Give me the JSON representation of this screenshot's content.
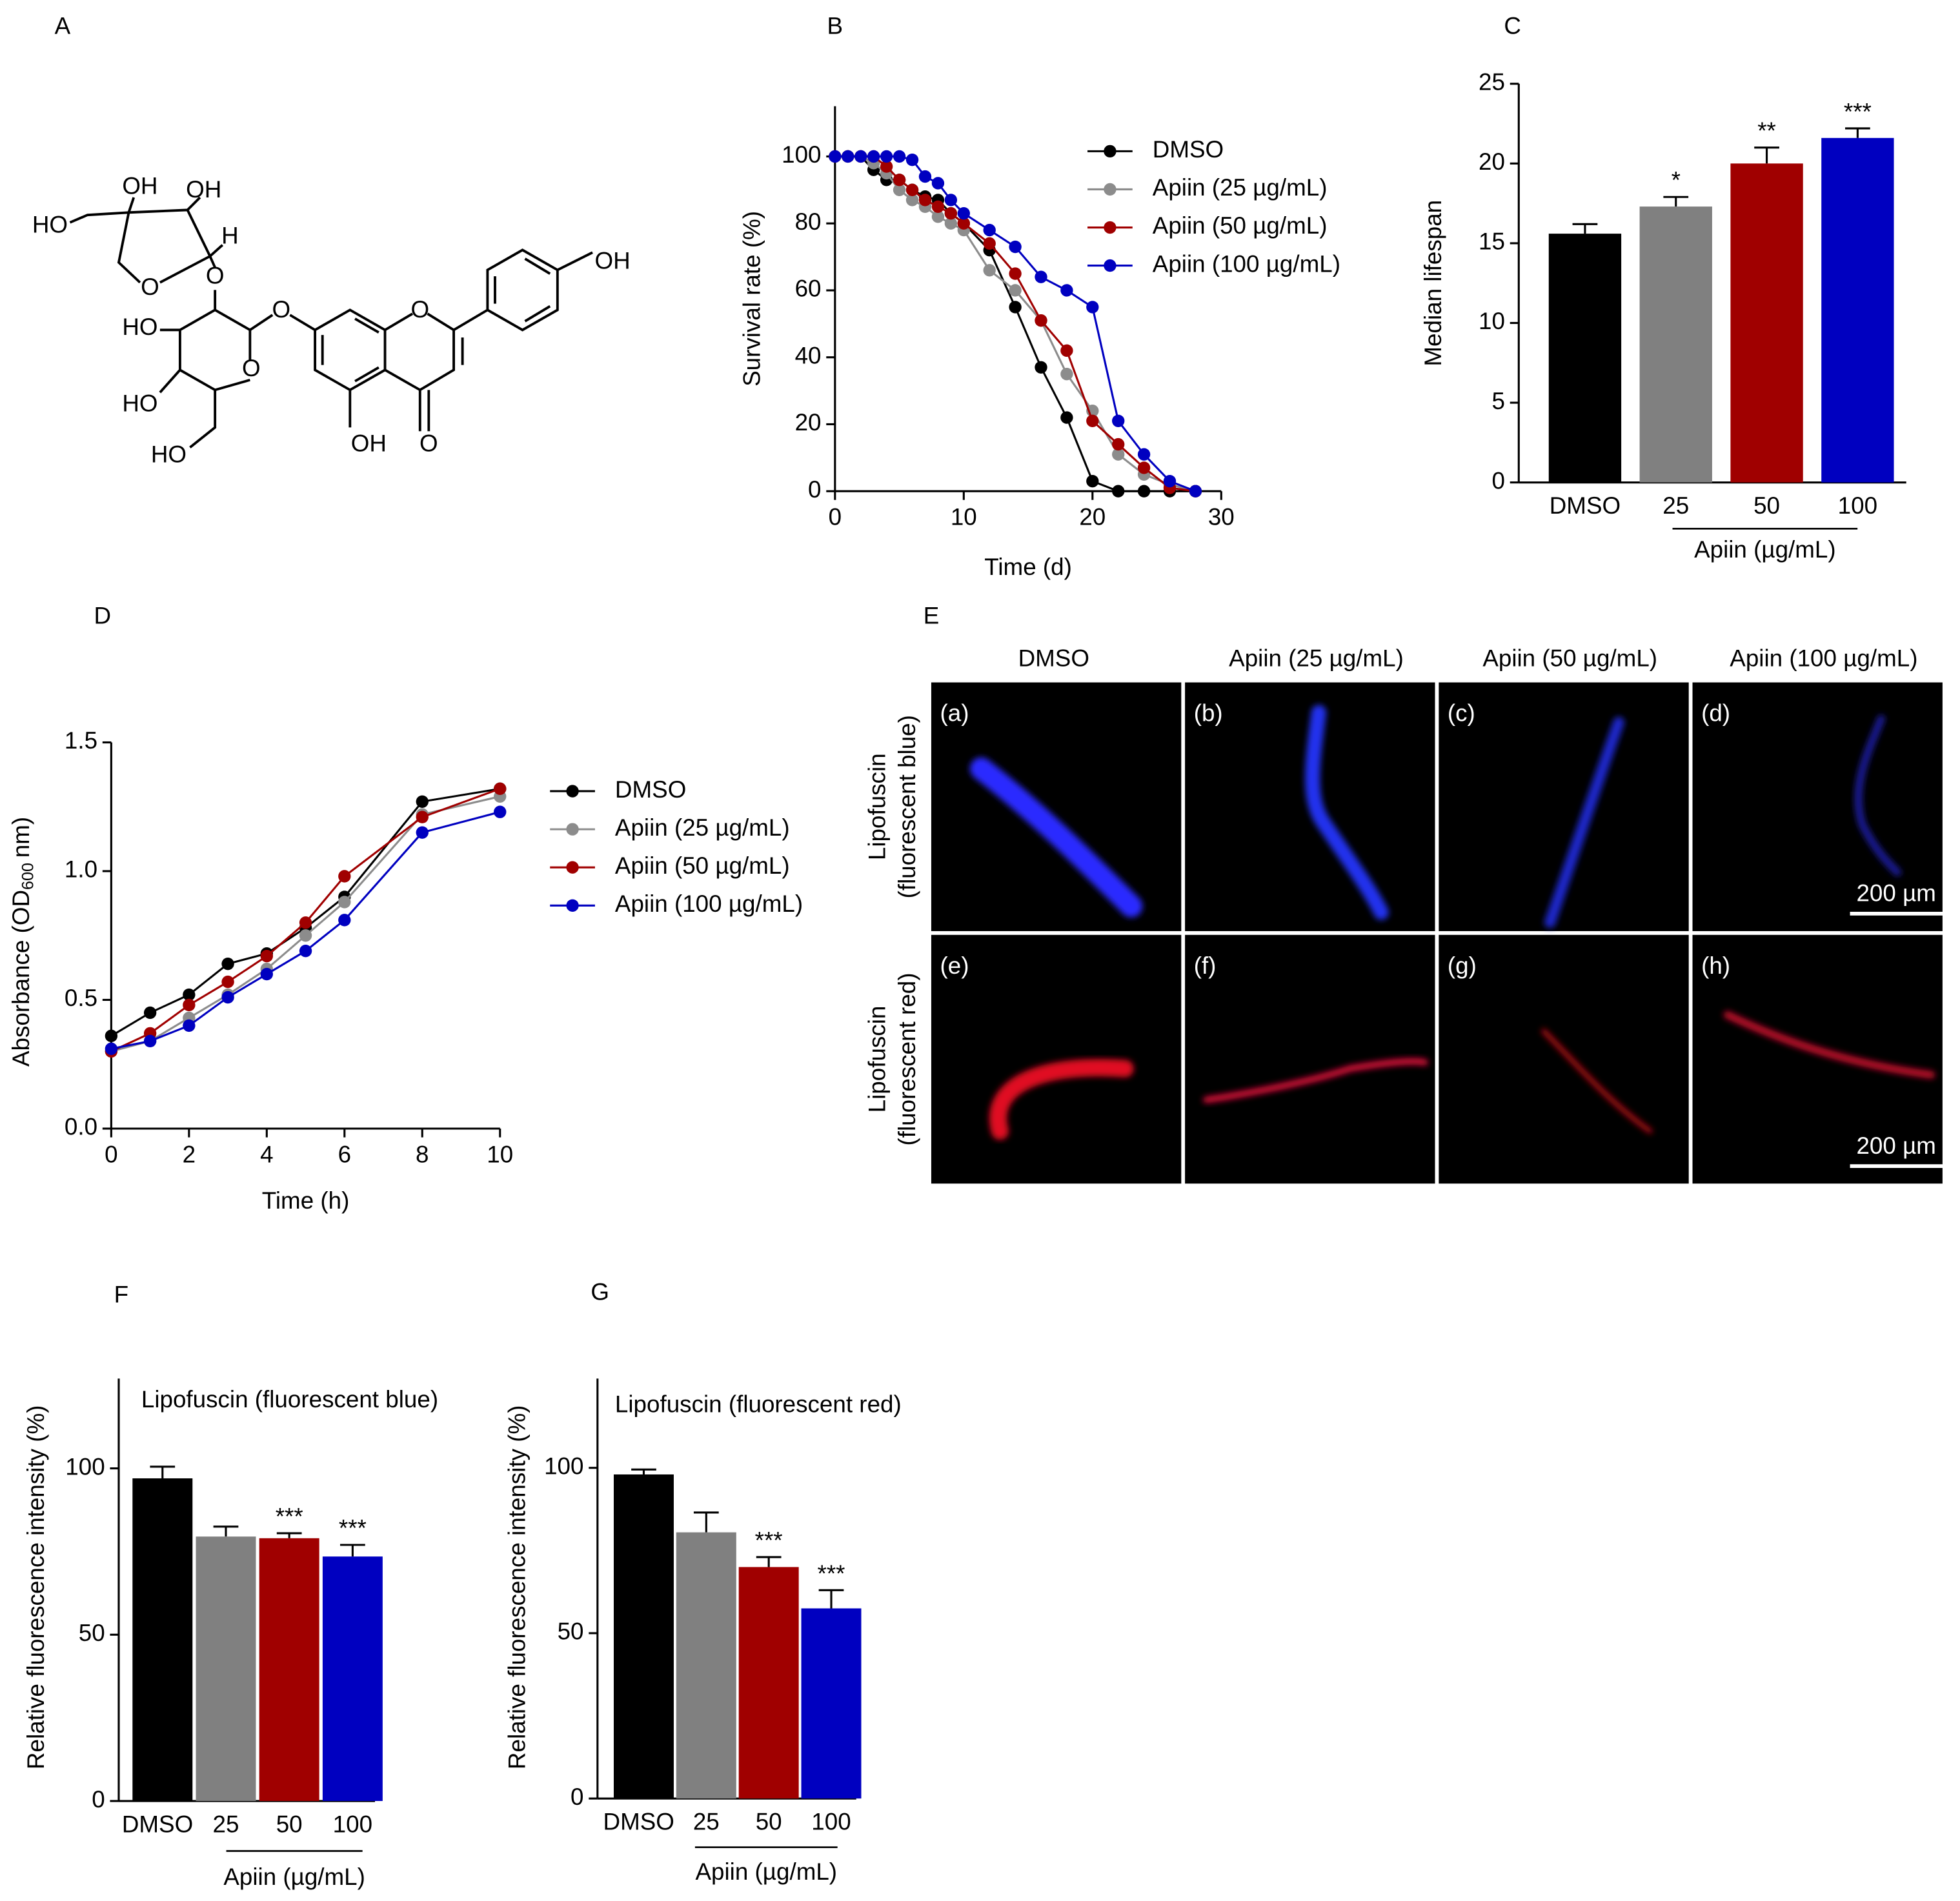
{
  "panels": {
    "labels": [
      "A",
      "B",
      "C",
      "D",
      "E",
      "F",
      "G"
    ]
  },
  "structure": {
    "atoms": [
      "OH",
      "OH",
      "HO",
      "H",
      "O",
      "O",
      "HO",
      "O",
      "O",
      "OH",
      "HO",
      "O",
      "OH",
      "O",
      "HO"
    ]
  },
  "image_grid": {
    "columns": [
      "DMSO",
      "Apiin (25 µg/mL)",
      "Apiin (50 µg/mL)",
      "Apiin (100 µg/mL)"
    ],
    "rows": [
      [
        "Lipofuscin",
        "(fluorescent blue)"
      ],
      [
        "Lipofuscin",
        "(fluorescent red)"
      ]
    ],
    "panels": [
      "(a)",
      "(b)",
      "(c)",
      "(d)",
      "(e)",
      "(f)",
      "(g)",
      "(h)"
    ],
    "scale_bar": "200 µm"
  },
  "chart_data": [
    {
      "type": "line",
      "x_label": "Time (d)",
      "y_label": "Survival rate (%)",
      "x": [
        0,
        1,
        2,
        3,
        4,
        5,
        6,
        7,
        8,
        9,
        10,
        12,
        14,
        16,
        18,
        20,
        22,
        24,
        26,
        28
      ],
      "series": [
        {
          "name": "DMSO",
          "color": "#000000",
          "values": [
            100,
            100,
            100,
            96,
            93,
            93,
            90,
            88,
            87,
            83,
            80,
            72,
            55,
            37,
            22,
            3,
            0,
            0,
            0,
            0
          ]
        },
        {
          "name": "Apiin (25 µg/mL)",
          "color": "#8c8c8c",
          "values": [
            100,
            100,
            100,
            98,
            95,
            90,
            87,
            85,
            82,
            80,
            78,
            66,
            60,
            51,
            35,
            24,
            11,
            5,
            2,
            0
          ]
        },
        {
          "name": "Apiin (50 µg/mL)",
          "color": "#a00000",
          "values": [
            100,
            100,
            100,
            100,
            97,
            93,
            90,
            87,
            85,
            83,
            80,
            74,
            65,
            51,
            42,
            21,
            14,
            7,
            1,
            0
          ]
        },
        {
          "name": "Apiin (100 µg/mL)",
          "color": "#0000c0",
          "values": [
            100,
            100,
            100,
            100,
            100,
            100,
            99,
            94,
            92,
            87,
            83,
            78,
            73,
            64,
            60,
            55,
            21,
            11,
            3,
            0
          ]
        }
      ],
      "xlim": [
        0,
        30
      ],
      "xticks": [
        0,
        10,
        20,
        30
      ],
      "ylim": [
        0,
        115
      ],
      "yticks": [
        0,
        20,
        40,
        60,
        80,
        100
      ]
    },
    {
      "type": "bar",
      "y_label": "Median lifespan",
      "categories": [
        "DMSO",
        "25",
        "50",
        "100"
      ],
      "values": [
        15.6,
        17.3,
        20,
        21.6
      ],
      "errors": [
        0.6,
        0.6,
        1,
        0.6
      ],
      "significance": [
        null,
        "*",
        "**",
        "***"
      ],
      "colors": [
        "#000000",
        "#808080",
        "#a00000",
        "#0000c0"
      ],
      "group_label": "Apiin (µg/mL)",
      "ylim": [
        0,
        25
      ],
      "yticks": [
        0,
        5,
        10,
        15,
        20,
        25
      ]
    },
    {
      "type": "line",
      "x_label": "Time (h)",
      "y_label_parts": [
        "Absorbance (OD",
        "600",
        "nm)"
      ],
      "x": [
        0,
        1,
        2,
        3,
        4,
        5,
        6,
        8,
        10
      ],
      "series": [
        {
          "name": "DMSO",
          "color": "#000000",
          "values": [
            0.36,
            0.45,
            0.52,
            0.64,
            0.68,
            0.78,
            0.9,
            1.27,
            1.32
          ]
        },
        {
          "name": "Apiin (25 µg/mL)",
          "color": "#8c8c8c",
          "values": [
            0.3,
            0.34,
            0.43,
            0.52,
            0.62,
            0.75,
            0.88,
            1.22,
            1.29
          ]
        },
        {
          "name": "Apiin (50 µg/mL)",
          "color": "#a00000",
          "values": [
            0.3,
            0.37,
            0.48,
            0.57,
            0.67,
            0.8,
            0.98,
            1.21,
            1.32
          ]
        },
        {
          "name": "Apiin (100 µg/mL)",
          "color": "#0000c0",
          "values": [
            0.31,
            0.34,
            0.4,
            0.51,
            0.6,
            0.69,
            0.81,
            1.15,
            1.23
          ]
        }
      ],
      "xlim": [
        0,
        10
      ],
      "xticks": [
        0,
        2,
        4,
        6,
        8,
        10
      ],
      "ylim": [
        0,
        1.5
      ],
      "yticks": [
        {
          "value": 0,
          "label": "0.0"
        },
        {
          "value": 0.5,
          "label": "0.5"
        },
        {
          "value": 1,
          "label": "1.0"
        },
        {
          "value": 1.5,
          "label": "1.5"
        }
      ]
    },
    {
      "type": "bar",
      "title": "Lipofuscin (fluorescent blue)",
      "y_label": "Relative fluorescence intensity (%)",
      "categories": [
        "DMSO",
        "25",
        "50",
        "100"
      ],
      "values": [
        97,
        79.5,
        79,
        73.5
      ],
      "errors": [
        3.5,
        3,
        1.5,
        3.5
      ],
      "significance": [
        null,
        null,
        "***",
        "***"
      ],
      "colors": [
        "#000000",
        "#808080",
        "#a00000",
        "#0000c0"
      ],
      "group_label": "Apiin (µg/mL)",
      "ylim": [
        0,
        127
      ],
      "yticks": [
        0,
        50,
        100
      ]
    },
    {
      "type": "bar",
      "title": "Lipofuscin (fluorescent red)",
      "y_label": "Relative fluorescence intensity (%)",
      "categories": [
        "DMSO",
        "25",
        "50",
        "100"
      ],
      "values": [
        98,
        80.5,
        70,
        57.5
      ],
      "errors": [
        1.5,
        6,
        3,
        5.5
      ],
      "significance": [
        null,
        null,
        "***",
        "***"
      ],
      "colors": [
        "#000000",
        "#808080",
        "#a00000",
        "#0000c0"
      ],
      "group_label": "Apiin (µg/mL)",
      "ylim": [
        0,
        127
      ],
      "yticks": [
        0,
        50,
        100
      ]
    }
  ]
}
